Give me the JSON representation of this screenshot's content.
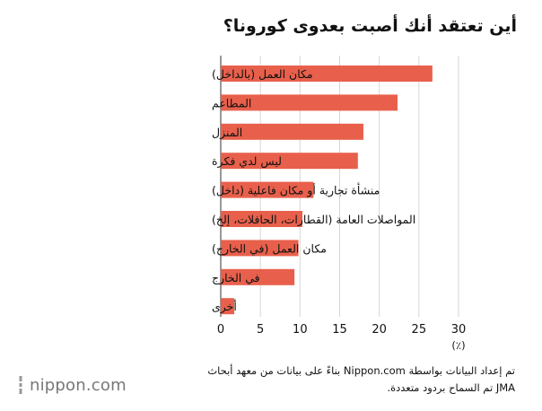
{
  "title": "أين تعتقد أنك أصبت بعدوى كورونا؟",
  "chart_data": {
    "type": "bar",
    "orientation": "horizontal",
    "categories": [
      "مكان العمل (بالداخل)",
      "المطاعم",
      "المنزل",
      "ليس لدي فكرة",
      "منشأة تجارية أو مكان فاعلية (داخل)",
      "المواصلات العامة (القطارات، الحافلات، إلخ)",
      "مكان العمل (في الخارج)",
      "في الخارج",
      "أخرى"
    ],
    "values": [
      26.7,
      22.3,
      18.0,
      17.3,
      11.7,
      10.3,
      9.8,
      9.3,
      1.7
    ],
    "xlim": [
      0,
      30
    ],
    "xticks": [
      "0",
      "5",
      "10",
      "15",
      "20",
      "25",
      "30"
    ],
    "unit_label": "(٪)",
    "bar_color": "#e8604c",
    "grid": "vertical"
  },
  "footer": {
    "line1": "تم إعداد البيانات بواسطة Nippon.com بناءً على بيانات من معهد أبحاث",
    "line2": "JMA تم السماح بردود متعددة."
  },
  "logo": {
    "name": "nippon",
    "suffix": ".com",
    "icon": "nippon-logo-icon"
  }
}
